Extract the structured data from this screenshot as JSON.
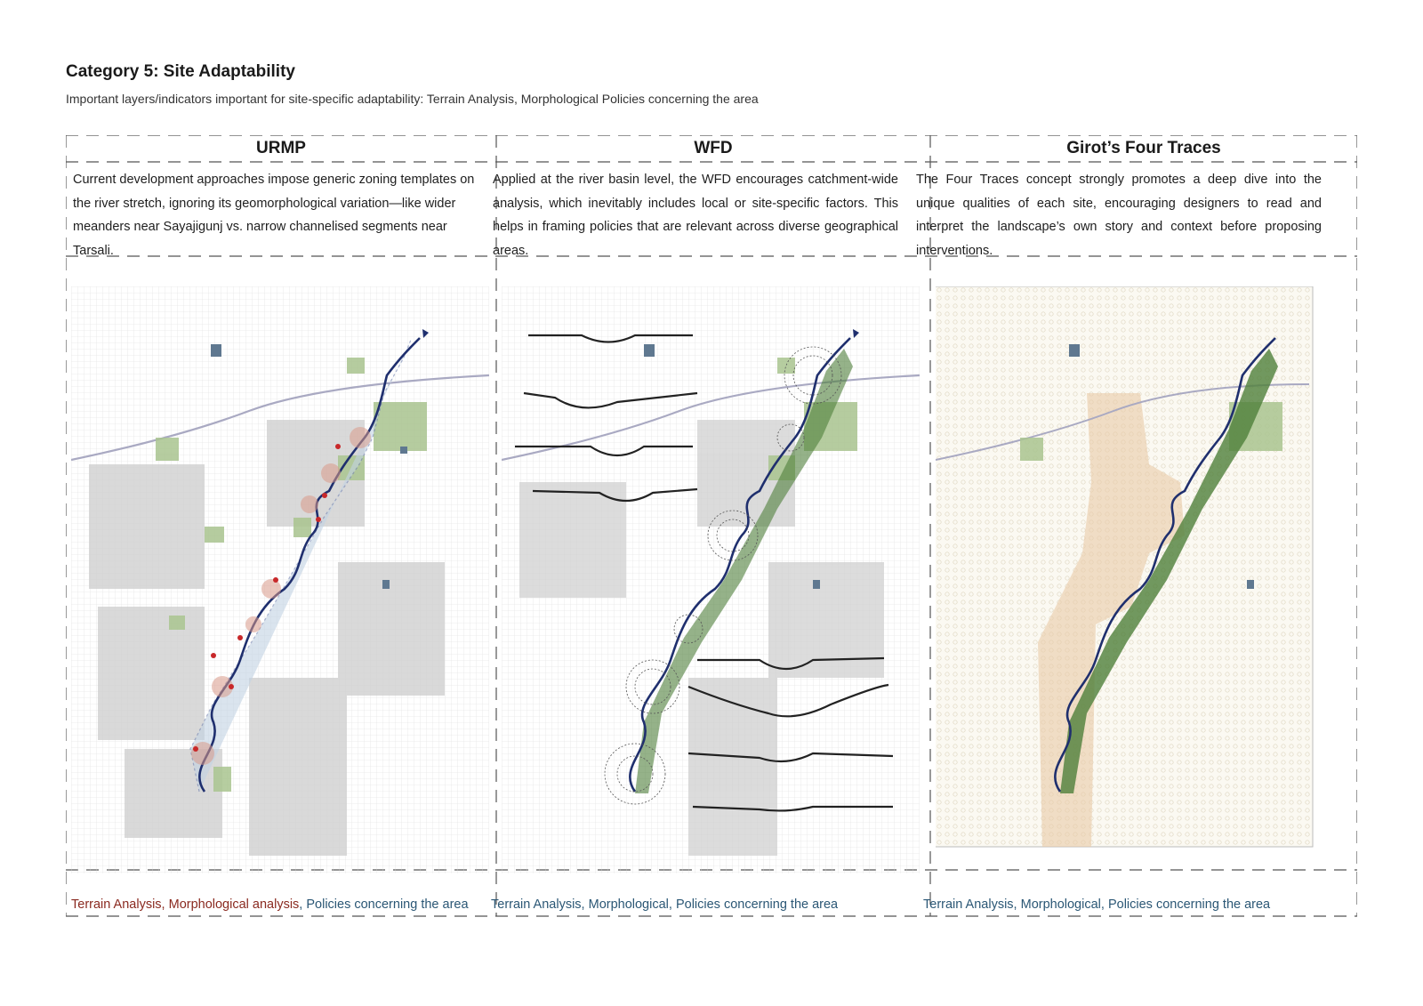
{
  "header": {
    "title": "Category 5: Site Adaptability",
    "subtitle": "Important layers/indicators important for site-specific adaptability: Terrain Analysis, Morphological Policies concerning the area"
  },
  "columns": [
    {
      "heading": "URMP",
      "description": "Current development approaches impose generic zoning templates on the river stretch, ignoring its geomorphological variation—like wider meanders near Sayajigunj vs. narrow channelised segments near Tarsali.",
      "footer": [
        "Terrain Analysis",
        "Morphological analysis",
        "Policies concerning the area"
      ]
    },
    {
      "heading": "WFD",
      "description": "Applied at the river basin level, the WFD encourages catchment-wide analysis, which inevitably includes local or site-specific factors. This helps in framing policies that are relevant across diverse geographical areas.",
      "footer": [
        "Terrain Analysis",
        "Morphological",
        "Policies concerning the area"
      ]
    },
    {
      "heading": "Girot’s Four Traces",
      "description": "The Four Traces concept strongly promotes a deep dive into the unique qualities of each site, encouraging designers to read and interpret the landscape’s own story and context before proposing interventions.",
      "footer": [
        "Terrain Analysis",
        "Morphological",
        "Policies concerning the area"
      ]
    }
  ],
  "colors": {
    "river": "#1f2f6e",
    "green_space": "#a9c48f",
    "dense_green": "#4f7f3a",
    "urban_grey": "#cfcfcf",
    "terrain_fill": "#e9c9a6",
    "marker_red": "#c8282a",
    "footer_red": "#8a2a20",
    "footer_blue": "#2b5775"
  }
}
